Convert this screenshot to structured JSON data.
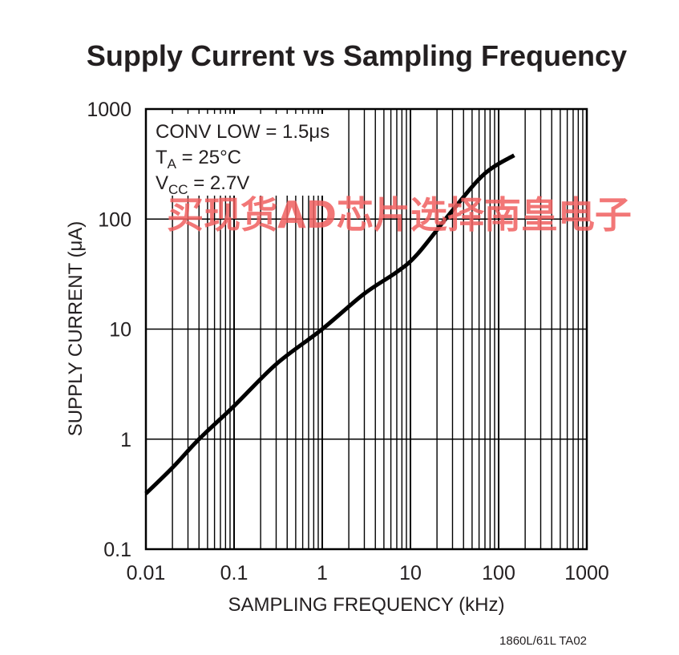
{
  "chart_data": {
    "type": "line",
    "title": "Supply Current vs Sampling Frequency",
    "xlabel": "SAMPLING FREQUENCY (kHz)",
    "ylabel": "SUPPLY CURRENT (μA)",
    "xscale": "log",
    "yscale": "log",
    "xlim": [
      0.01,
      1000
    ],
    "ylim": [
      0.1,
      1000
    ],
    "x_ticks": [
      "0.01",
      "0.1",
      "1",
      "10",
      "100",
      "1000"
    ],
    "y_ticks": [
      "0.1",
      "1",
      "10",
      "100",
      "1000"
    ],
    "grid": true,
    "annotations": {
      "line1": "CONV LOW = 1.5μs",
      "line2_main": "T",
      "line2_sub": "A",
      "line2_rest": " = 25°C",
      "line3_main": "V",
      "line3_sub": "CC",
      "line3_rest": " = 2.7V"
    },
    "series": [
      {
        "x": [
          0.01,
          0.02,
          0.04,
          0.1,
          0.3,
          1,
          3,
          7,
          12,
          30,
          70,
          150
        ],
        "y": [
          0.32,
          0.55,
          1.0,
          2.0,
          4.8,
          10,
          21,
          33,
          48,
          120,
          260,
          380
        ]
      }
    ]
  },
  "footer_code": "1860L/61L TA02",
  "watermark_text": "买现货AD芯片选择南皇电子",
  "colors": {
    "line": "#000000",
    "grid": "#000000",
    "text": "#231f20",
    "watermark": "#f06060"
  }
}
